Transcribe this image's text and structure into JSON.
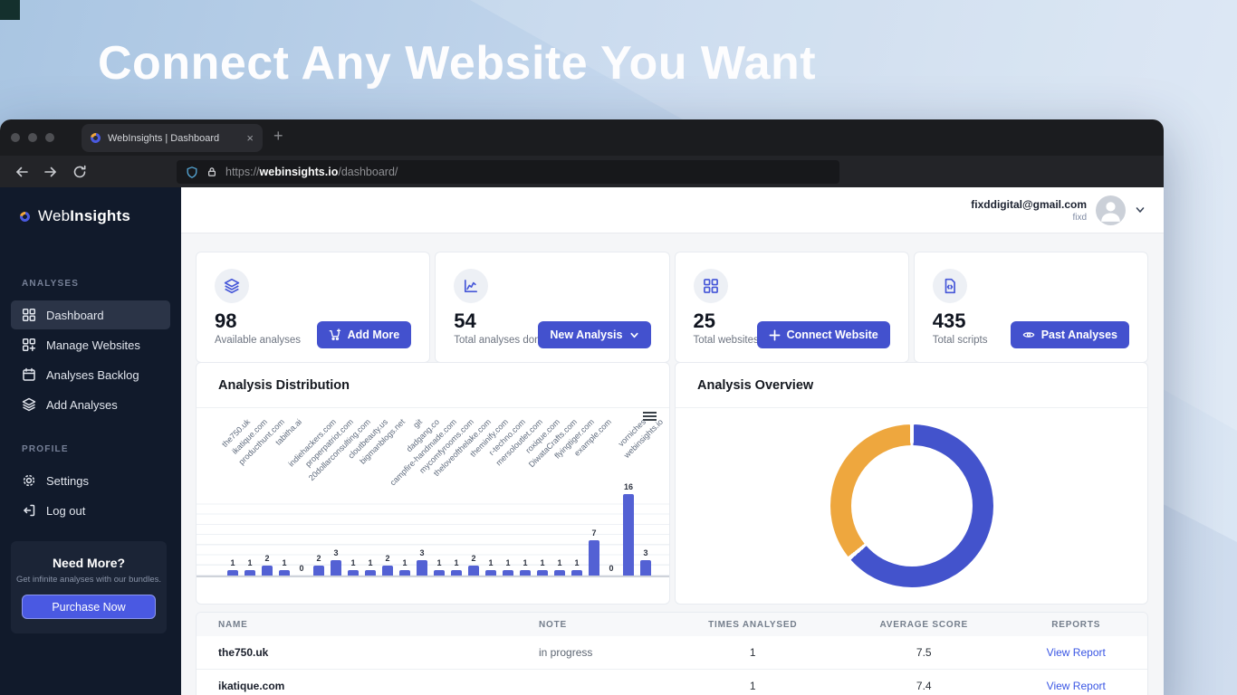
{
  "hero": {
    "title": "Connect Any Website You Want"
  },
  "browser": {
    "tab_title": "WebInsights | Dashboard",
    "close_glyph": "×",
    "new_tab_glyph": "+",
    "url_scheme": "https://",
    "url_domain": "webinsights.io",
    "url_path": "/dashboard/"
  },
  "sidebar": {
    "brand_web": "Web",
    "brand_bold": "Insights",
    "section_analyses": "ANALYSES",
    "section_profile": "PROFILE",
    "analyses_items": [
      {
        "label": "Dashboard"
      },
      {
        "label": "Manage Websites"
      },
      {
        "label": "Analyses Backlog"
      },
      {
        "label": "Add Analyses"
      }
    ],
    "profile_items": [
      {
        "label": "Settings"
      },
      {
        "label": "Log out"
      }
    ]
  },
  "promo": {
    "title": "Need More?",
    "subtitle": "Get infinite analyses with our bundles.",
    "button": "Purchase Now"
  },
  "header": {
    "email": "fixddigital@gmail.com",
    "username": "fixd"
  },
  "stats": {
    "cards": [
      {
        "value": "98",
        "label": "Available analyses",
        "button": "Add More"
      },
      {
        "value": "54",
        "label": "Total analyses done",
        "button": "New Analysis"
      },
      {
        "value": "25",
        "label": "Total websites",
        "button": "Connect Website"
      },
      {
        "value": "435",
        "label": "Total scripts",
        "button": "Past Analyses"
      }
    ]
  },
  "charts": {
    "distribution_title": "Analysis Distribution",
    "overview_title": "Analysis Overview"
  },
  "chart_data": [
    {
      "type": "bar",
      "title": "Analysis Distribution",
      "categories": [
        "the750.uk",
        "ikatique.com",
        "producthunt.com",
        "tabitha.ai",
        "",
        "indiehackers.com",
        "properpatriot.com",
        "20dollarconsulting.com",
        "cloutbeauty.us",
        "bigmanblogs.net",
        "git",
        "dadgang.co",
        "campfire-handmade.com",
        "mycomfyrooms.com",
        "theloveofthelake.com",
        "theminify.com",
        "r-techno.com",
        "mersoloutlet.com",
        "roxique.com",
        "DiwataCrafts.com",
        "flyingtiger.com",
        "example.com",
        "",
        "vorniches",
        "webinsights.io"
      ],
      "values": [
        1,
        1,
        2,
        1,
        0,
        2,
        3,
        1,
        1,
        2,
        1,
        3,
        1,
        1,
        2,
        1,
        1,
        1,
        1,
        1,
        1,
        7,
        0,
        16,
        3
      ],
      "ylim": [
        0,
        16
      ],
      "bar_color": "#5361d4",
      "gridlines": true,
      "value_labels": true,
      "xlabel": "",
      "ylabel": ""
    },
    {
      "type": "pie",
      "title": "Analysis Overview",
      "style": "donut",
      "segments": [
        {
          "value": 63.5,
          "color": "#4353cc"
        },
        {
          "value": 36.5,
          "color": "#eea73e"
        }
      ],
      "unit": "percent",
      "legend": "none"
    }
  ],
  "table": {
    "headers": [
      "NAME",
      "NOTE",
      "TIMES ANALYSED",
      "AVERAGE SCORE",
      "REPORTS"
    ],
    "rows": [
      {
        "name": "the750.uk",
        "note": "in progress",
        "times": "1",
        "score": "7.5",
        "report": "View Report"
      },
      {
        "name": "ikatique.com",
        "note": "",
        "times": "1",
        "score": "7.4",
        "report": "View Report"
      }
    ]
  },
  "colors": {
    "accent": "#4351ce",
    "bar": "#5361d4",
    "donut_blue": "#4353cc",
    "donut_orange": "#eea73e",
    "link": "#3a56e4"
  }
}
